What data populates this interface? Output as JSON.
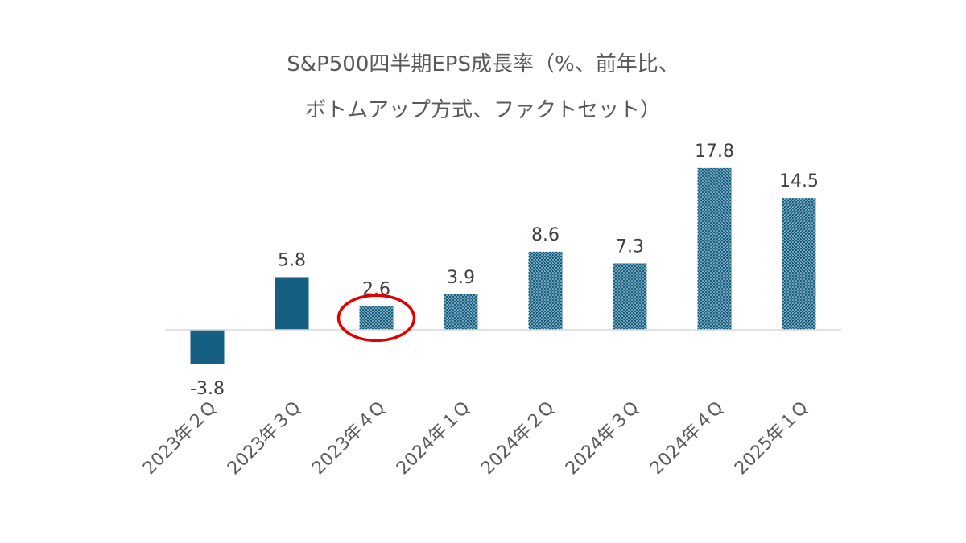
{
  "chart_data": {
    "type": "bar",
    "title_lines": [
      "S&P500四半期EPS成長率（%、前年比、",
      "ボトムアップ方式、ファクトセット）"
    ],
    "categories": [
      "2023年２Q",
      "2023年３Q",
      "2023年４Q",
      "2024年１Q",
      "2024年２Q",
      "2024年３Q",
      "2024年４Q",
      "2025年１Q"
    ],
    "values": [
      -3.8,
      5.8,
      2.6,
      3.9,
      8.6,
      7.3,
      17.8,
      14.5
    ],
    "value_labels": [
      "-3.8",
      "5.8",
      "2.6",
      "3.9",
      "8.6",
      "7.3",
      "17.8",
      "14.5"
    ],
    "bar_styles": [
      "solid",
      "solid",
      "dotted",
      "dotted",
      "dotted",
      "dotted",
      "dotted",
      "dotted"
    ],
    "highlighted_category": "2023年４Q",
    "ylim": [
      -3.8,
      17.8
    ],
    "xlabel": "",
    "ylabel": "",
    "grid": false,
    "legend": "none",
    "colors": {
      "bar": "#155f82",
      "bar_dot": "#ffffff",
      "axis": "#d9d9d9",
      "highlight": "#e00000",
      "title": "#595959",
      "label": "#404040"
    }
  }
}
